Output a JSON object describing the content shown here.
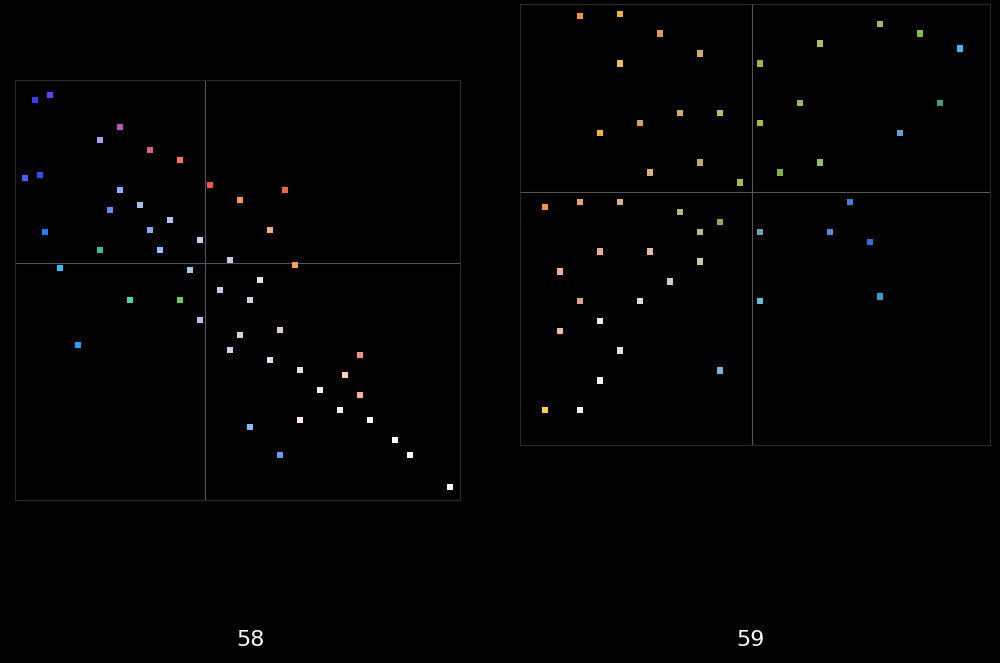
{
  "chart_data": [
    {
      "type": "scatter",
      "title": "58",
      "marker": "square",
      "tick_labels": false,
      "grid": false,
      "xlim": [
        -190,
        255
      ],
      "ylim": [
        -237,
        183
      ],
      "xticks": [],
      "yticks": [],
      "x": [
        -170,
        -155,
        -165,
        -180,
        -160,
        -145,
        -127,
        -85,
        -105,
        -55,
        -25,
        5,
        35,
        80,
        65,
        90,
        -85,
        -65,
        -35,
        -5,
        -45,
        -15,
        25,
        15,
        45,
        -5,
        35,
        75,
        65,
        95,
        115,
        140,
        155,
        135,
        165,
        190,
        205,
        245,
        -75,
        -25,
        -105,
        45,
        75,
        -55,
        -95,
        55,
        25,
        95,
        155
      ],
      "values": [
        163,
        168,
        88,
        85,
        31,
        -5,
        -82,
        136,
        123,
        113,
        103,
        78,
        63,
        73,
        33,
        -2,
        73,
        58,
        43,
        23,
        13,
        -7,
        3,
        -27,
        -37,
        -57,
        -72,
        -67,
        -97,
        -107,
        -127,
        -112,
        -92,
        -147,
        -157,
        -177,
        -192,
        -224,
        -37,
        -37,
        13,
        -164,
        -192,
        33,
        53,
        -17,
        -87,
        -157,
        -132
      ],
      "colors": [
        "#3a3aff",
        "#6040ff",
        "#2050ff",
        "#4060ff",
        "#2080ff",
        "#30c0ff",
        "#20a0ff",
        "#c050c0",
        "#a0a0ff",
        "#e06080",
        "#ff7060",
        "#ff5040",
        "#ff9050",
        "#ff6040",
        "#ffb070",
        "#ffa050",
        "#90b0ff",
        "#a0c0f0",
        "#b0c8f0",
        "#c0d0f0",
        "#90c0ff",
        "#a8c8f0",
        "#d0c8e0",
        "#c0d0e8",
        "#d8d0d8",
        "#b0c8e8",
        "#d0d8e8",
        "#e0d0d0",
        "#e0e0e8",
        "#e8e0e0",
        "#f0f0f0",
        "#ffd0c0",
        "#ff9080",
        "#f0f0f0",
        "#f8f8f8",
        "#ffffff",
        "#ffffff",
        "#ffffff",
        "#40e0a0",
        "#60d060",
        "#30c0a0",
        "#80c0ff",
        "#60a0ff",
        "#7ab0ff",
        "#6090ff",
        "#f0e0e0",
        "#c8d8f0",
        "#ffe8e8",
        "#ffb0a0"
      ]
    },
    {
      "type": "scatter",
      "title": "59",
      "marker": "square",
      "tick_labels": false,
      "grid": false,
      "xlim": [
        -232,
        238
      ],
      "ylim": [
        -255,
        190
      ],
      "xticks": [],
      "yticks": [],
      "x": [
        -207,
        -172,
        -152,
        -132,
        -192,
        -172,
        -152,
        -112,
        -82,
        -52,
        -102,
        -152,
        -207,
        -172,
        -132,
        -72,
        -32,
        8,
        -12,
        28,
        68,
        98,
        118,
        128,
        78,
        148,
        188,
        208,
        168,
        128,
        68,
        8,
        -52,
        -92,
        -132,
        -172,
        -152,
        -112,
        -72,
        -32,
        8,
        48,
        -52,
        -102,
        8,
        -32,
        -192,
        -132,
        -52
      ],
      "values": [
        -220,
        -220,
        -190,
        -160,
        -140,
        -110,
        -130,
        -110,
        -90,
        -70,
        -60,
        -60,
        -15,
        -10,
        -10,
        -20,
        -30,
        -40,
        10,
        20,
        30,
        -10,
        -50,
        -105,
        -40,
        60,
        90,
        145,
        160,
        170,
        150,
        130,
        140,
        160,
        180,
        178,
        60,
        70,
        80,
        80,
        70,
        90,
        30,
        20,
        -110,
        -180,
        -80,
        130,
        -40
      ],
      "colors": [
        "#ffd040",
        "#f0f0f0",
        "#f8f0e8",
        "#e8e0d8",
        "#f0c0a0",
        "#e0a080",
        "#f0e8e0",
        "#e0e0d0",
        "#d0d0c0",
        "#c0d0a0",
        "#e0c0a0",
        "#e8b090",
        "#ff9030",
        "#f0a060",
        "#e0b080",
        "#b0c060",
        "#90b050",
        "#70a0c0",
        "#a0c040",
        "#80b040",
        "#90c060",
        "#4080e0",
        "#3070e0",
        "#30a0e0",
        "#5090d0",
        "#60a0d0",
        "#40a080",
        "#30c0ff",
        "#80c040",
        "#a0c060",
        "#b0c050",
        "#a0b840",
        "#d0b060",
        "#e0a040",
        "#f0b030",
        "#ff9020",
        "#ffb040",
        "#e0a050",
        "#d0b060",
        "#c0c050",
        "#a0c040",
        "#90c050",
        "#c0b060",
        "#e0b070",
        "#60c0e0",
        "#80b0e0",
        "#f0b090",
        "#f0c040",
        "#b8c070"
      ]
    }
  ]
}
